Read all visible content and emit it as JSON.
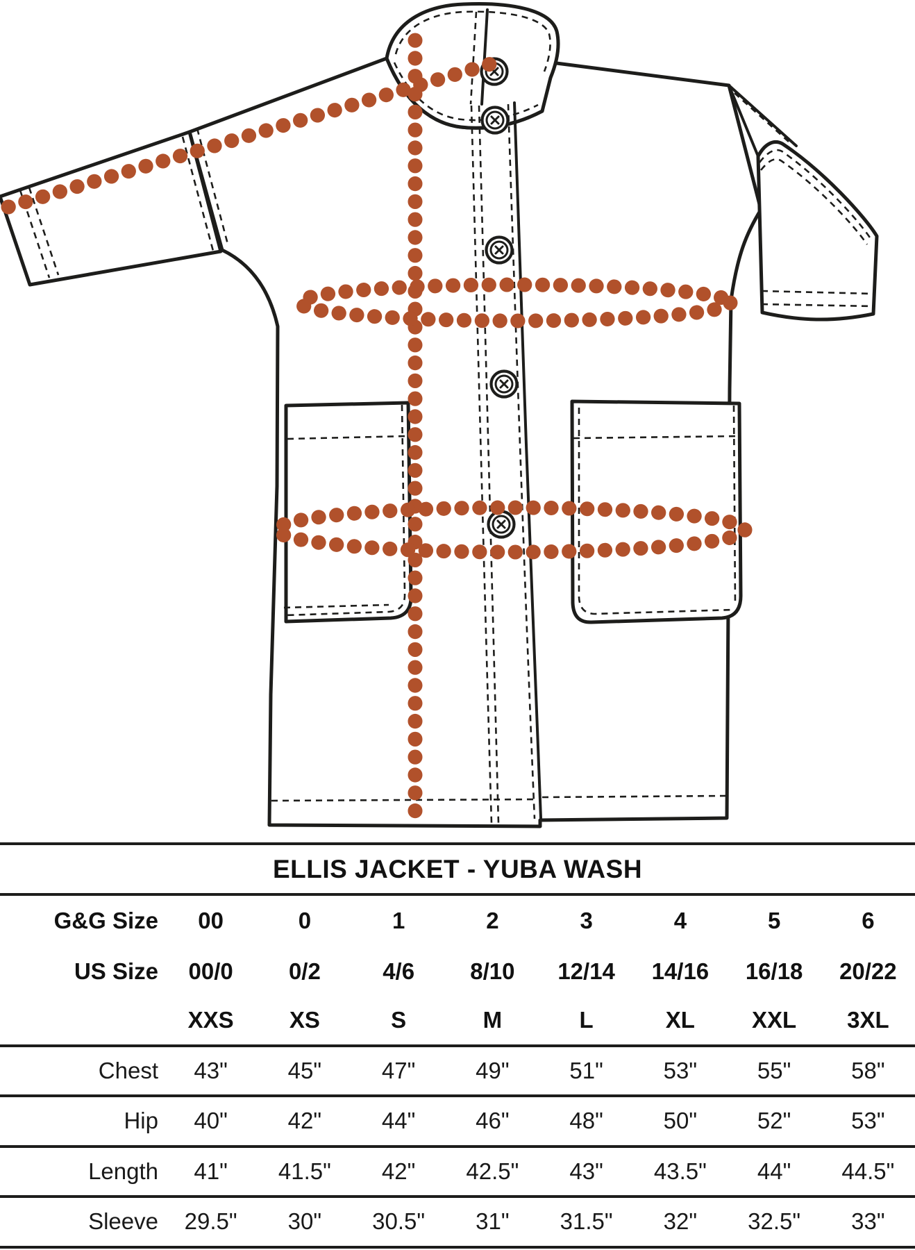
{
  "title": "ELLIS JACKET - YUBA WASH",
  "diagram": {
    "description": "Technical flat sketch of a band-collar jacket with dotted measurement guides",
    "line_color": "#1d1d1b",
    "measure_color": "#b1512b",
    "measure_guides": [
      "sleeve-diagonal",
      "length-vertical",
      "chest-ellipse",
      "hip-ellipse"
    ],
    "button_count": 5
  },
  "size_chart": {
    "rows": [
      {
        "label": "G&G Size",
        "bold": true,
        "values": [
          "00",
          "0",
          "1",
          "2",
          "3",
          "4",
          "5",
          "6"
        ]
      },
      {
        "label": "US Size",
        "bold": true,
        "values": [
          "00/0",
          "0/2",
          "4/6",
          "8/10",
          "12/14",
          "14/16",
          "16/18",
          "20/22"
        ]
      },
      {
        "label": "",
        "bold": true,
        "values": [
          "XXS",
          "XS",
          "S",
          "M",
          "L",
          "XL",
          "XXL",
          "3XL"
        ]
      },
      {
        "label": "Chest",
        "bold": false,
        "values": [
          "43\"",
          "45\"",
          "47\"",
          "49\"",
          "51\"",
          "53\"",
          "55\"",
          "58\""
        ]
      },
      {
        "label": "Hip",
        "bold": false,
        "values": [
          "40\"",
          "42\"",
          "44\"",
          "46\"",
          "48\"",
          "50\"",
          "52\"",
          "53\""
        ]
      },
      {
        "label": "Length",
        "bold": false,
        "values": [
          "41\"",
          "41.5\"",
          "42\"",
          "42.5\"",
          "43\"",
          "43.5\"",
          "44\"",
          "44.5\""
        ]
      },
      {
        "label": "Sleeve",
        "bold": false,
        "values": [
          "29.5\"",
          "30\"",
          "30.5\"",
          "31\"",
          "31.5\"",
          "32\"",
          "32.5\"",
          "33\""
        ]
      }
    ]
  },
  "chart_data": {
    "type": "table",
    "title": "ELLIS JACKET - YUBA WASH",
    "columns": [
      "XXS",
      "XS",
      "S",
      "M",
      "L",
      "XL",
      "XXL",
      "3XL"
    ],
    "gg_size": [
      "00",
      "0",
      "1",
      "2",
      "3",
      "4",
      "5",
      "6"
    ],
    "us_size": [
      "00/0",
      "0/2",
      "4/6",
      "8/10",
      "12/14",
      "14/16",
      "16/18",
      "20/22"
    ],
    "chest_in": [
      43,
      45,
      47,
      49,
      51,
      53,
      55,
      58
    ],
    "hip_in": [
      40,
      42,
      44,
      46,
      48,
      50,
      52,
      53
    ],
    "length_in": [
      41,
      41.5,
      42,
      42.5,
      43,
      43.5,
      44,
      44.5
    ],
    "sleeve_in": [
      29.5,
      30,
      30.5,
      31,
      31.5,
      32,
      32.5,
      33
    ]
  }
}
